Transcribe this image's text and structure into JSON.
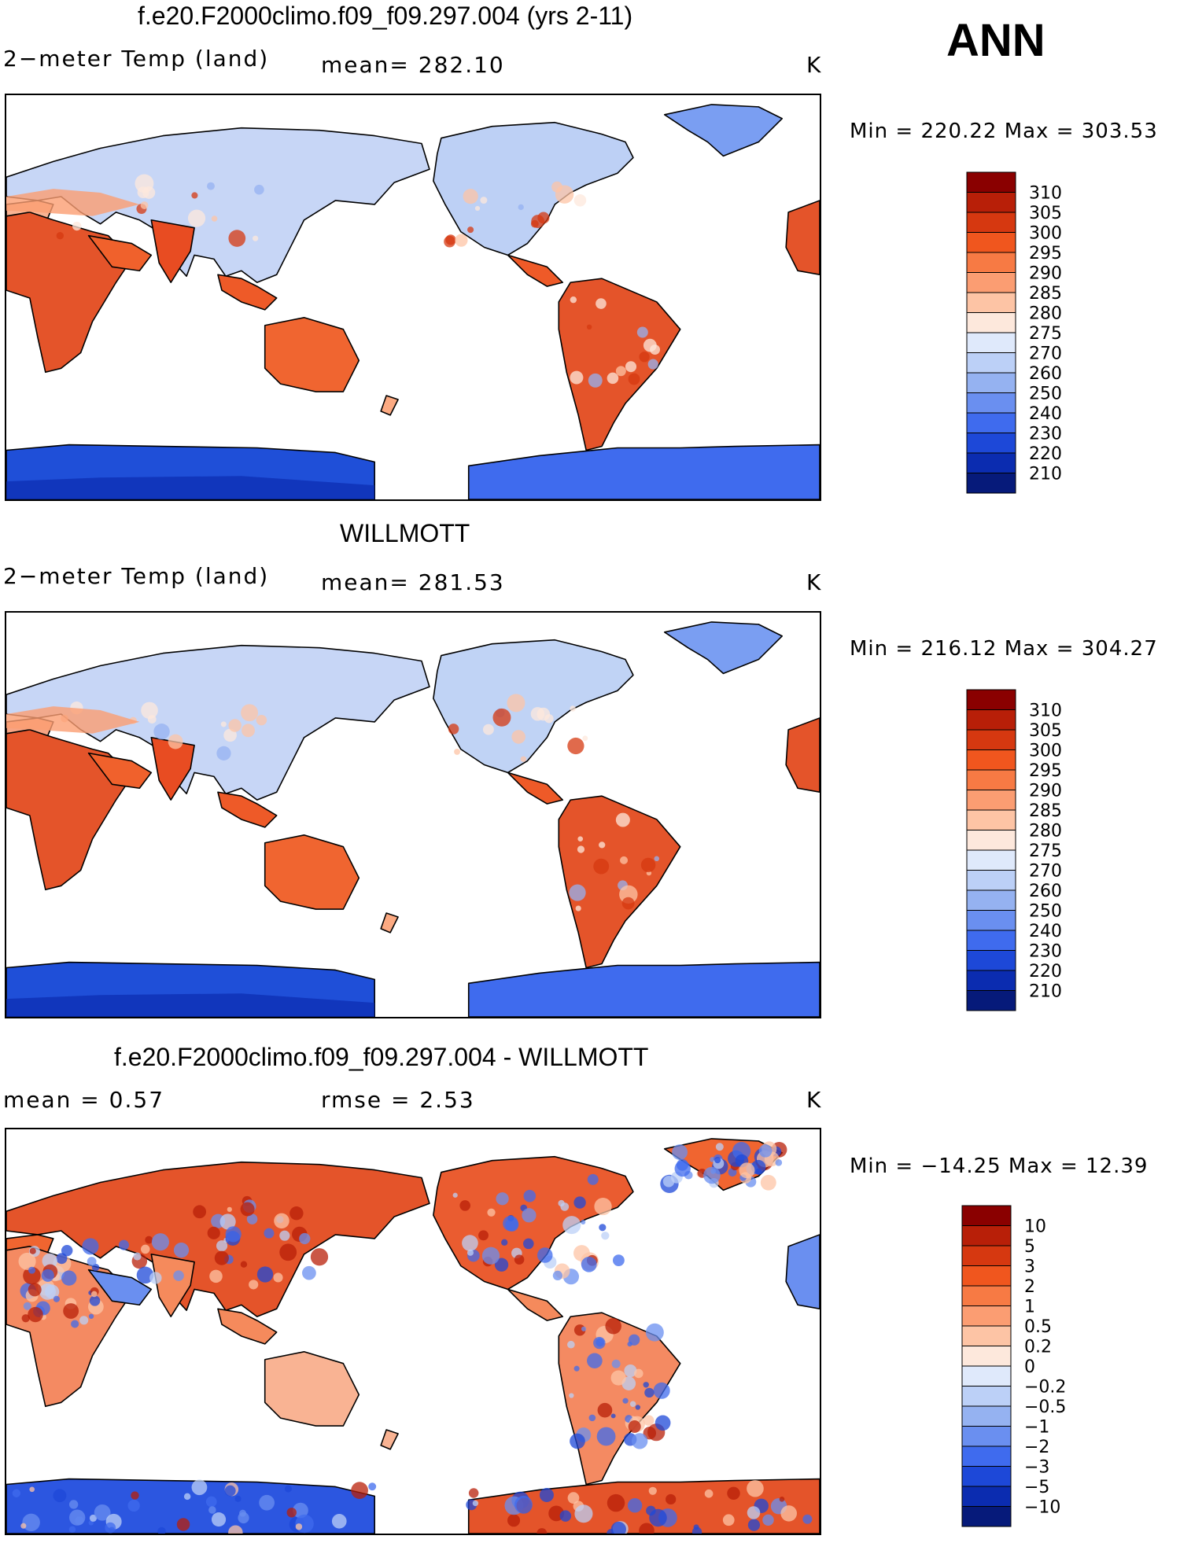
{
  "season": "ANN",
  "panels": [
    {
      "title": "f.e20.F2000climo.f09_f09.297.004 (yrs 2-11)",
      "left_label": "2−meter Temp (land)",
      "center_label": "mean=  282.10",
      "units": "K",
      "minmax": "Min  =  220.22  Max  =  303.53",
      "legend_levels": [
        "310",
        "305",
        "300",
        "295",
        "290",
        "285",
        "280",
        "275",
        "270",
        "260",
        "250",
        "240",
        "230",
        "220",
        "210"
      ],
      "legend_colors": [
        "#8a0000",
        "#b81f08",
        "#d63810",
        "#f0561e",
        "#f77a44",
        "#fb9d72",
        "#fdc4a5",
        "#fde8dc",
        "#dfe9fb",
        "#bcd0f7",
        "#95b2f1",
        "#6a8ff0",
        "#3f6bee",
        "#1d48d8",
        "#0b2cb0",
        "#061a7a"
      ],
      "map_style": "model"
    },
    {
      "title": "WILLMOTT",
      "left_label": "2−meter Temp (land)",
      "center_label": "mean=  281.53",
      "units": "K",
      "minmax": "Min  =  216.12  Max  =  304.27",
      "legend_levels": [
        "310",
        "305",
        "300",
        "295",
        "290",
        "285",
        "280",
        "275",
        "270",
        "260",
        "250",
        "240",
        "230",
        "220",
        "210"
      ],
      "legend_colors": [
        "#8a0000",
        "#b81f08",
        "#d63810",
        "#f0561e",
        "#f77a44",
        "#fb9d72",
        "#fdc4a5",
        "#fde8dc",
        "#dfe9fb",
        "#bcd0f7",
        "#95b2f1",
        "#6a8ff0",
        "#3f6bee",
        "#1d48d8",
        "#0b2cb0",
        "#061a7a"
      ],
      "map_style": "obs"
    },
    {
      "title": "f.e20.F2000climo.f09_f09.297.004 - WILLMOTT",
      "left_label": "mean  =      0.57",
      "center_label": "rmse  =      2.53",
      "units": "K",
      "minmax": "Min  =  −14.25  Max  =      12.39",
      "legend_levels": [
        "10",
        "5",
        "3",
        "2",
        "1",
        "0.5",
        "0.2",
        "0",
        "−0.2",
        "−0.5",
        "−1",
        "−2",
        "−3",
        "−5",
        "−10"
      ],
      "legend_colors": [
        "#8a0000",
        "#b81f08",
        "#d63810",
        "#f0561e",
        "#f77a44",
        "#fb9d72",
        "#fdc4a5",
        "#fde8dc",
        "#dfe9fb",
        "#bcd0f7",
        "#95b2f1",
        "#6a8ff0",
        "#3f6bee",
        "#1d48d8",
        "#0b2cb0",
        "#061a7a"
      ],
      "map_style": "diff"
    }
  ]
}
